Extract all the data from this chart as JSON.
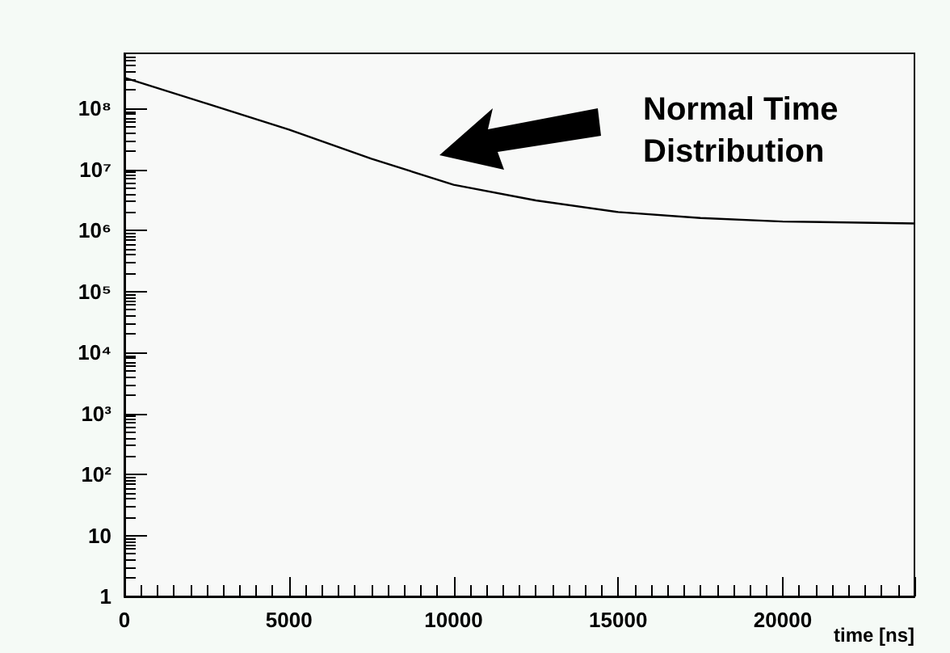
{
  "chart_data": {
    "type": "line",
    "xlabel": "time [ns]",
    "annotations": [
      "Normal Time Distribution"
    ],
    "x": [
      0,
      2500,
      5000,
      7500,
      10000,
      12500,
      15000,
      17500,
      20000,
      24000
    ],
    "series": [
      {
        "color": "#000000",
        "values": [
          320000000,
          120000000,
          45000000,
          15000000,
          5600000,
          3100000,
          2000000,
          1600000,
          1400000,
          1300000
        ]
      }
    ],
    "xlim": [
      0,
      24000
    ],
    "xticks": [
      0,
      5000,
      10000,
      15000,
      20000
    ],
    "ylim": [
      1,
      800000000
    ],
    "yticks": [
      1,
      10,
      {
        "value": 100,
        "label": "10²"
      },
      {
        "value": 1000,
        "label": "10³"
      },
      {
        "value": 10000,
        "label": "10⁴"
      },
      {
        "value": 100000,
        "label": "10⁵"
      },
      {
        "value": 1000000,
        "label": "10⁶"
      },
      {
        "value": 10000000,
        "label": "10⁷"
      },
      {
        "value": 100000000,
        "label": "10⁸"
      }
    ],
    "log": "y",
    "grid": false,
    "marker": "none",
    "line_style": "solid"
  }
}
